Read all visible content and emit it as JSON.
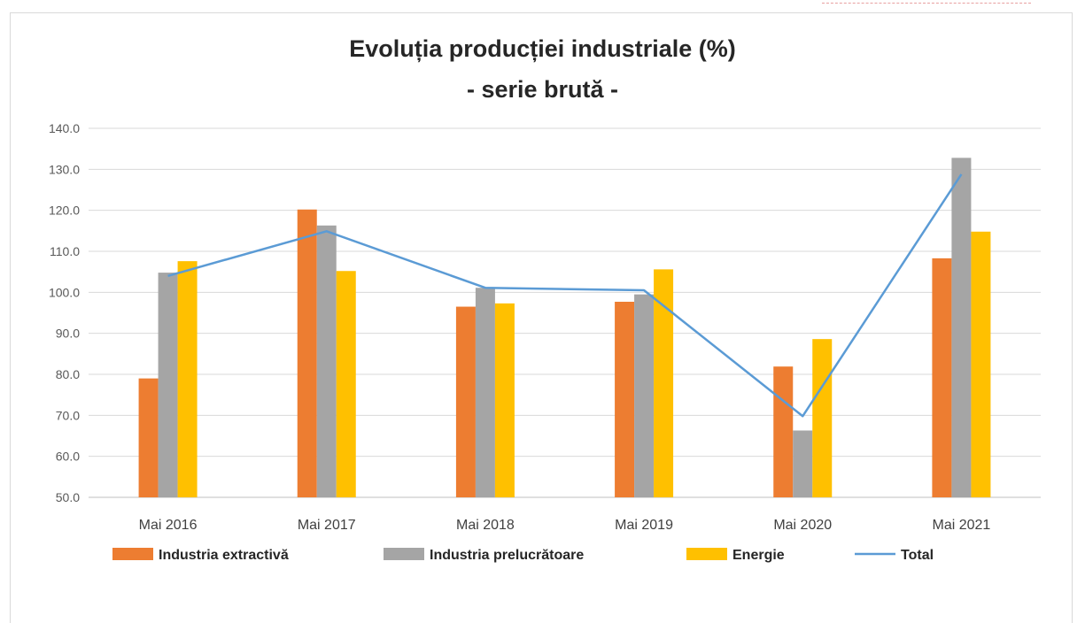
{
  "chart_data": {
    "type": "bar",
    "title": "Evoluția producției industriale (%)",
    "subtitle": "- serie brută -",
    "categories": [
      "Mai 2016",
      "Mai 2017",
      "Mai 2018",
      "Mai 2019",
      "Mai 2020",
      "Mai 2021"
    ],
    "series": [
      {
        "name": "Industria extractivă",
        "type": "bar",
        "color": "#ed7d31",
        "values": [
          79.0,
          120.2,
          96.5,
          97.7,
          81.9,
          108.3
        ]
      },
      {
        "name": "Industria prelucrătoare",
        "type": "bar",
        "color": "#a5a5a5",
        "values": [
          104.8,
          116.3,
          101.1,
          99.5,
          66.3,
          132.8
        ]
      },
      {
        "name": "Energie",
        "type": "bar",
        "color": "#ffc000",
        "values": [
          107.6,
          105.2,
          97.3,
          105.6,
          88.6,
          114.8
        ]
      },
      {
        "name": "Total",
        "type": "line",
        "color": "#5b9bd5",
        "values": [
          104.0,
          114.9,
          101.1,
          100.5,
          69.8,
          128.8
        ]
      }
    ],
    "ylim": [
      50,
      140
    ],
    "yticks": [
      "50.0",
      "60.0",
      "70.0",
      "80.0",
      "90.0",
      "100.0",
      "110.0",
      "120.0",
      "130.0",
      "140.0"
    ],
    "grid": true,
    "legend": "bottom"
  }
}
